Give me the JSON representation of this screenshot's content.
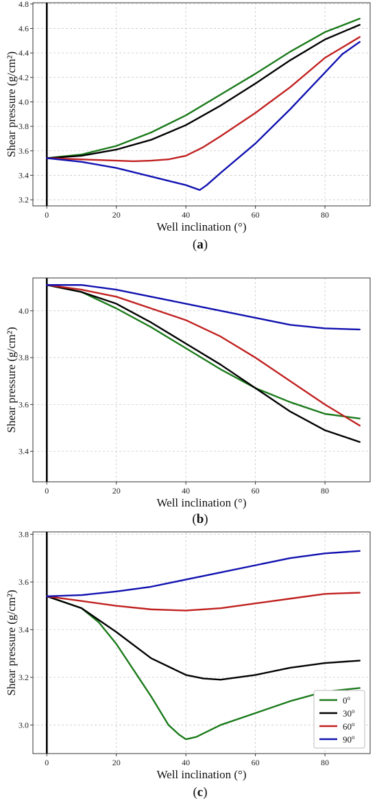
{
  "chart_data": [
    {
      "type": "line",
      "caption": "(a)",
      "caption_prefix": "(",
      "caption_letter": "a",
      "caption_suffix": ")",
      "xlabel": "Well inclination (°)",
      "ylabel": "Shear pressure (g/cm²)",
      "xlim": [
        -4,
        93
      ],
      "ylim": [
        3.15,
        4.81
      ],
      "xticks": [
        0,
        20,
        40,
        60,
        80
      ],
      "yticks": [
        3.2,
        3.4,
        3.6,
        3.8,
        4.0,
        4.2,
        4.4,
        4.6,
        4.8
      ],
      "ytick_labels": [
        "3.2",
        "3.4",
        "3.6",
        "3.8",
        "4.0",
        "4.2",
        "4.4",
        "4.6",
        "4.8"
      ],
      "grid": true,
      "legend": null,
      "series": [
        {
          "color": "#1a7a1a",
          "x": [
            0,
            10,
            20,
            30,
            40,
            50,
            60,
            70,
            80,
            90
          ],
          "y": [
            3.54,
            3.57,
            3.64,
            3.75,
            3.89,
            4.06,
            4.23,
            4.41,
            4.57,
            4.68
          ]
        },
        {
          "color": "#000000",
          "x": [
            0,
            10,
            20,
            30,
            40,
            50,
            60,
            70,
            80,
            90
          ],
          "y": [
            3.54,
            3.56,
            3.61,
            3.69,
            3.81,
            3.97,
            4.15,
            4.34,
            4.51,
            4.63
          ]
        },
        {
          "color": "#c0201f",
          "x": [
            0,
            10,
            20,
            25,
            30,
            35,
            40,
            45,
            50,
            60,
            70,
            80,
            90
          ],
          "y": [
            3.54,
            3.53,
            3.52,
            3.515,
            3.52,
            3.53,
            3.56,
            3.63,
            3.72,
            3.91,
            4.12,
            4.36,
            4.53
          ]
        },
        {
          "color": "#1010b0",
          "x": [
            0,
            10,
            20,
            30,
            40,
            44,
            46,
            50,
            60,
            70,
            80,
            85,
            90
          ],
          "y": [
            3.54,
            3.51,
            3.46,
            3.39,
            3.32,
            3.28,
            3.32,
            3.42,
            3.66,
            3.94,
            4.24,
            4.39,
            4.49
          ]
        }
      ]
    },
    {
      "type": "line",
      "caption": "(b)",
      "caption_prefix": "(",
      "caption_letter": "b",
      "caption_suffix": ")",
      "xlabel": "Well inclination (°)",
      "ylabel": "Shear pressure (g/cm²)",
      "xlim": [
        -4,
        93
      ],
      "ylim": [
        3.27,
        4.14
      ],
      "xticks": [
        0,
        20,
        40,
        60,
        80
      ],
      "yticks": [
        3.4,
        3.6,
        3.8,
        4.0
      ],
      "ytick_labels": [
        "3.4",
        "3.6",
        "3.8",
        "4.0"
      ],
      "grid": true,
      "legend": null,
      "series": [
        {
          "color": "#1a7a1a",
          "x": [
            0,
            10,
            20,
            30,
            40,
            50,
            60,
            70,
            80,
            90
          ],
          "y": [
            4.11,
            4.08,
            4.01,
            3.93,
            3.84,
            3.75,
            3.67,
            3.61,
            3.56,
            3.54
          ]
        },
        {
          "color": "#000000",
          "x": [
            0,
            10,
            20,
            30,
            40,
            50,
            60,
            70,
            80,
            90
          ],
          "y": [
            4.11,
            4.08,
            4.03,
            3.95,
            3.86,
            3.77,
            3.67,
            3.57,
            3.49,
            3.44
          ]
        },
        {
          "color": "#c0201f",
          "x": [
            0,
            10,
            20,
            30,
            40,
            50,
            60,
            70,
            80,
            90
          ],
          "y": [
            4.11,
            4.09,
            4.06,
            4.01,
            3.96,
            3.89,
            3.8,
            3.7,
            3.6,
            3.51
          ]
        },
        {
          "color": "#1010b0",
          "x": [
            0,
            10,
            20,
            30,
            40,
            50,
            60,
            70,
            80,
            90
          ],
          "y": [
            4.11,
            4.11,
            4.09,
            4.06,
            4.03,
            4.0,
            3.97,
            3.94,
            3.925,
            3.92
          ]
        }
      ]
    },
    {
      "type": "line",
      "caption": "(c)",
      "caption_prefix": "(",
      "caption_letter": "c",
      "caption_suffix": ")",
      "xlabel": "Well inclination (°)",
      "ylabel": "Shear pressure (g/cm²)",
      "xlim": [
        -4,
        93
      ],
      "ylim": [
        2.88,
        3.81
      ],
      "xticks": [
        0,
        20,
        40,
        60,
        80
      ],
      "yticks": [
        3.0,
        3.2,
        3.4,
        3.6,
        3.8
      ],
      "ytick_labels": [
        "3.0",
        "3.2",
        "3.4",
        "3.6",
        "3.8"
      ],
      "grid": true,
      "legend": "lower right",
      "series": [
        {
          "name": "0°",
          "legend_base": "0",
          "legend_sup": "o",
          "color": "#1a7a1a",
          "x": [
            0,
            10,
            15,
            20,
            25,
            30,
            35,
            38,
            40,
            43,
            50,
            60,
            70,
            80,
            90
          ],
          "y": [
            3.54,
            3.49,
            3.43,
            3.34,
            3.23,
            3.12,
            3.0,
            2.96,
            2.94,
            2.95,
            3.0,
            3.05,
            3.1,
            3.14,
            3.155
          ]
        },
        {
          "name": "30°",
          "legend_base": "30",
          "legend_sup": "o",
          "color": "#000000",
          "x": [
            0,
            10,
            20,
            30,
            40,
            45,
            50,
            60,
            70,
            80,
            90
          ],
          "y": [
            3.54,
            3.49,
            3.39,
            3.28,
            3.21,
            3.195,
            3.19,
            3.21,
            3.24,
            3.26,
            3.27
          ]
        },
        {
          "name": "60°",
          "legend_base": "60",
          "legend_sup": "o",
          "color": "#c0201f",
          "x": [
            0,
            10,
            20,
            30,
            40,
            50,
            60,
            70,
            80,
            90
          ],
          "y": [
            3.54,
            3.52,
            3.5,
            3.485,
            3.48,
            3.49,
            3.51,
            3.53,
            3.55,
            3.555
          ]
        },
        {
          "name": "90°",
          "legend_base": "90",
          "legend_sup": "o",
          "color": "#1010b0",
          "x": [
            0,
            10,
            20,
            30,
            40,
            50,
            60,
            70,
            80,
            90
          ],
          "y": [
            3.54,
            3.545,
            3.56,
            3.58,
            3.61,
            3.64,
            3.67,
            3.7,
            3.72,
            3.73
          ]
        }
      ]
    }
  ]
}
